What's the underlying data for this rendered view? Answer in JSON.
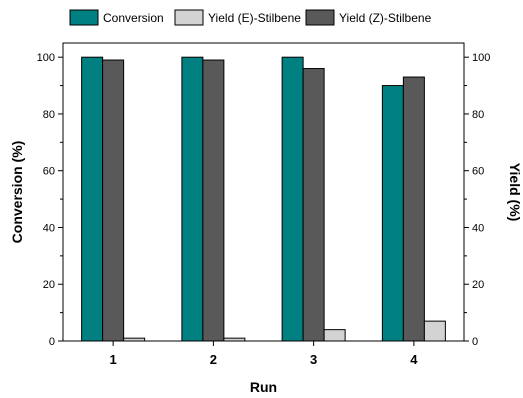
{
  "chart_data": {
    "type": "bar",
    "categories": [
      "1",
      "2",
      "3",
      "4"
    ],
    "series": [
      {
        "name": "Conversion",
        "values": [
          100,
          100,
          100,
          90
        ],
        "color": "#008080"
      },
      {
        "name": "Yield (E)-Stilbene",
        "values": [
          1,
          1,
          4,
          7
        ],
        "color": "#d3d3d3"
      },
      {
        "name": "Yield (Z)-Stilbene",
        "values": [
          99,
          99,
          96,
          93
        ],
        "color": "#595959"
      }
    ],
    "bar_order": [
      0,
      2,
      1
    ],
    "xlabel": "Run",
    "ylabel": "Conversion (%)",
    "y2label": "Yield (%)",
    "ylim": [
      0,
      105
    ],
    "yticks": [
      0,
      20,
      40,
      60,
      80,
      100
    ],
    "legend_position": "top",
    "grid": false
  }
}
